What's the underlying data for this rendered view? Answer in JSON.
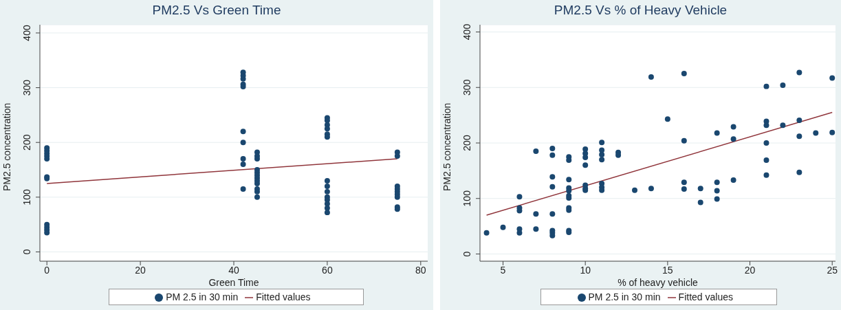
{
  "chart_data": [
    {
      "type": "scatter",
      "title": "PM2.5 Vs Green Time",
      "xlabel": "Green Time",
      "ylabel": "PM2.5 concentration",
      "xlim": [
        -1.5,
        81.5
      ],
      "ylim": [
        -17,
        415
      ],
      "xticks": [
        0,
        20,
        40,
        60,
        80
      ],
      "yticks": [
        0,
        100,
        200,
        300,
        400
      ],
      "grid": "y",
      "legend": "bottom",
      "series": [
        {
          "name": "PM 2.5 in 30 min",
          "marker": "circle",
          "color": "#1a476f",
          "x": [
            0,
            0,
            0,
            0,
            0,
            0,
            0,
            0,
            0,
            0,
            0,
            42,
            42,
            42,
            42,
            42,
            42,
            42,
            42,
            42,
            42,
            45,
            45,
            45,
            45,
            45,
            45,
            45,
            45,
            45,
            45,
            45,
            45,
            60,
            60,
            60,
            60,
            60,
            60,
            60,
            60,
            60,
            60,
            60,
            60,
            60,
            60,
            75,
            75,
            75,
            75,
            75,
            75,
            75,
            75,
            75
          ],
          "values": [
            190,
            185,
            180,
            175,
            170,
            137,
            134,
            50,
            45,
            40,
            35,
            328,
            322,
            316,
            306,
            302,
            220,
            200,
            170,
            160,
            115,
            182,
            175,
            170,
            150,
            145,
            140,
            135,
            130,
            125,
            115,
            110,
            100,
            245,
            240,
            232,
            225,
            215,
            210,
            130,
            120,
            110,
            100,
            95,
            88,
            80,
            72,
            182,
            175,
            120,
            115,
            110,
            105,
            100,
            82,
            78
          ]
        },
        {
          "name": "Fitted values",
          "type": "line",
          "marker": "none",
          "color": "#90353b",
          "x": [
            0,
            75
          ],
          "values": [
            125,
            170
          ]
        }
      ]
    },
    {
      "type": "scatter",
      "title": "PM2.5 Vs % of Heavy Vehicle",
      "xlabel": "% of heavy vehicle",
      "ylabel": "PM2.5 concentration",
      "xlim": [
        3.6,
        25.2
      ],
      "ylim": [
        -13,
        413
      ],
      "xticks": [
        5,
        10,
        15,
        20,
        25
      ],
      "yticks": [
        0,
        100,
        200,
        300,
        400
      ],
      "grid": "y",
      "legend": "bottom",
      "series": [
        {
          "name": "PM 2.5 in 30 min",
          "marker": "circle",
          "color": "#1a476f",
          "x": [
            4,
            5,
            6,
            6,
            6,
            6,
            6,
            7,
            7,
            7,
            8,
            8,
            8,
            8,
            8,
            8,
            8,
            8,
            9,
            9,
            9,
            9,
            9,
            9,
            9,
            9,
            9,
            9,
            9,
            10,
            10,
            10,
            10,
            10,
            10,
            10,
            11,
            11,
            11,
            11,
            11,
            11,
            11,
            12,
            12,
            13,
            14,
            14,
            15,
            16,
            16,
            16,
            16,
            17,
            17,
            18,
            18,
            18,
            18,
            19,
            19,
            19,
            21,
            21,
            21,
            21,
            21,
            21,
            22,
            22,
            23,
            23,
            23,
            23,
            24,
            25,
            25
          ],
          "values": [
            38,
            48,
            103,
            83,
            78,
            45,
            38,
            185,
            72,
            45,
            190,
            178,
            139,
            121,
            72,
            42,
            38,
            33,
            175,
            169,
            134,
            119,
            114,
            105,
            101,
            83,
            79,
            42,
            39,
            189,
            181,
            174,
            160,
            124,
            118,
            115,
            201,
            187,
            179,
            170,
            127,
            120,
            115,
            183,
            178,
            115,
            319,
            118,
            243,
            325,
            204,
            129,
            117,
            118,
            93,
            218,
            129,
            114,
            99,
            229,
            207,
            133,
            302,
            239,
            232,
            200,
            169,
            142,
            304,
            232,
            327,
            241,
            212,
            147,
            218,
            317,
            219
          ]
        },
        {
          "name": "Fitted values",
          "type": "line",
          "marker": "none",
          "color": "#90353b",
          "x": [
            4,
            25
          ],
          "values": [
            70,
            255
          ]
        }
      ]
    }
  ]
}
